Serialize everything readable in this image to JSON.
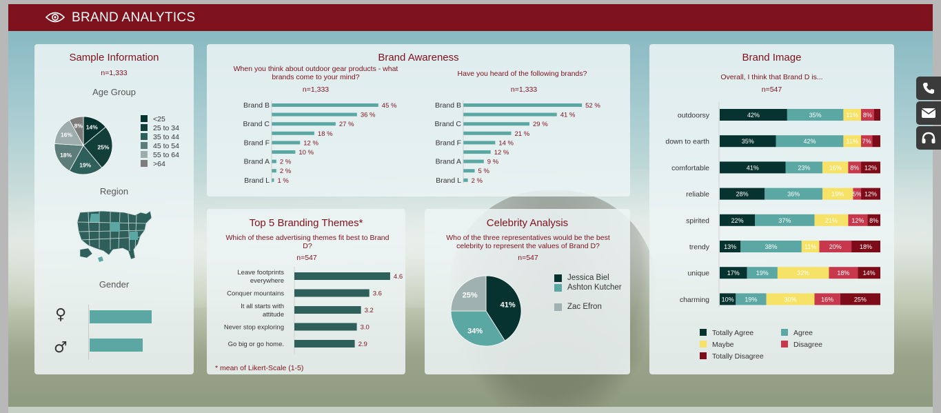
{
  "header": {
    "title": "BRAND ANALYTICS",
    "icon": "eye-icon"
  },
  "colors": {
    "header": "#7d111c",
    "dark": "#06332f",
    "teal": "#5aa7a3",
    "mid": "#2f5f5a",
    "yellow": "#f5e266",
    "pink": "#c7384d",
    "maroon": "#7d0c18"
  },
  "sample": {
    "title": "Sample Information",
    "n": "n=1,333",
    "age_title": "Age Group",
    "region_title": "Region",
    "gender_title": "Gender",
    "age_legend": [
      "<25",
      "25 to 34",
      "35 to 44",
      "45 to 54",
      "55 to 64",
      ">64"
    ],
    "gender_icons": [
      "female-icon",
      "male-icon"
    ]
  },
  "awareness": {
    "title": "Brand Awareness",
    "q1": "When you think about outdoor gear products  - what brands come to your mind?",
    "q2": "Have you heard of the following brands?",
    "n1": "n=1,333",
    "n2": "n=1,333"
  },
  "themes": {
    "title": "Top 5 Branding Themes*",
    "question": "Which of these advertising themes fit best to Brand D?",
    "n": "n=547",
    "footnote": "* mean of Likert-Scale (1-5)"
  },
  "celebrity": {
    "title": "Celebrity Analysis",
    "question": "Who of the three representatives would be the best celebrity to represent the values of Brand D?",
    "n": "n=547",
    "legend": [
      "Jessica Biel",
      "Ashton Kutcher",
      "Zac Efron"
    ]
  },
  "image": {
    "title": "Brand Image",
    "question": "Overall, I think that Brand D is...",
    "n": "n=547",
    "legend": [
      "Totally Agree",
      "Agree",
      "Maybe",
      "Disagree",
      "Totally Disagree"
    ]
  },
  "side_buttons": [
    "phone-icon",
    "mail-icon",
    "headset-icon"
  ],
  "chart_data": [
    {
      "type": "pie",
      "name": "age-group",
      "labels": [
        "<25",
        "25 to 34",
        "35 to 44",
        "45 to 54",
        "55 to 64",
        ">64"
      ],
      "values": [
        14,
        25,
        19,
        18,
        16,
        8
      ],
      "value_labels": [
        "14%",
        "25%",
        "19%",
        "18%",
        "16%",
        "8%"
      ],
      "colors": [
        "#06332f",
        "#123f3a",
        "#2f5f5a",
        "#5c7d79",
        "#9cadab",
        "#7c7c7c"
      ]
    },
    {
      "type": "bar",
      "name": "gender",
      "categories": [
        "female",
        "male"
      ],
      "values": [
        54,
        46
      ],
      "color": "#5aa7a3"
    },
    {
      "type": "bar",
      "name": "awareness-unaided",
      "categories": [
        "Brand B",
        "",
        "Brand C",
        "",
        "Brand F",
        "",
        "Brand A",
        "",
        "Brand L"
      ],
      "values": [
        45,
        36,
        27,
        18,
        12,
        10,
        2,
        2,
        1
      ],
      "value_labels": [
        "45 %",
        "36 %",
        "27 %",
        "18 %",
        "12 %",
        "10 %",
        "2 %",
        "2 %",
        "1 %"
      ],
      "xlim": [
        0,
        50
      ]
    },
    {
      "type": "bar",
      "name": "awareness-aided",
      "categories": [
        "Brand B",
        "",
        "Brand C",
        "",
        "Brand F",
        "",
        "Brand A",
        "",
        "Brand L"
      ],
      "values": [
        52,
        41,
        29,
        21,
        14,
        12,
        9,
        5,
        2
      ],
      "value_labels": [
        "52 %",
        "41 %",
        "29 %",
        "21 %",
        "14 %",
        "12 %",
        "9 %",
        "5 %",
        "2 %"
      ],
      "xlim": [
        0,
        58
      ]
    },
    {
      "type": "bar",
      "name": "themes",
      "categories": [
        "Leave footprints everywhere",
        "Conquer mountains",
        "It all starts with attitude",
        "Never stop exploring",
        "Go big or go home."
      ],
      "values": [
        4.6,
        3.6,
        3.2,
        3.0,
        2.9
      ],
      "value_labels": [
        "4.6",
        "3.6",
        "3.2",
        "3.0",
        "2.9"
      ],
      "xlim": [
        0,
        5
      ]
    },
    {
      "type": "pie",
      "name": "celebrity",
      "labels": [
        "Jessica Biel",
        "Ashton Kutcher",
        "Zac Efron"
      ],
      "values": [
        41,
        34,
        25
      ],
      "value_labels": [
        "41%",
        "34%",
        "25%"
      ],
      "colors": [
        "#06332f",
        "#5aa7a3",
        "#9fb2b0"
      ]
    },
    {
      "type": "bar",
      "name": "brand-image",
      "categories": [
        "outdoorsy",
        "down to earth",
        "comfortable",
        "reliable",
        "spirited",
        "trendy",
        "unique",
        "charming"
      ],
      "series": [
        {
          "name": "Totally Agree",
          "values": [
            42,
            35,
            41,
            28,
            22,
            13,
            17,
            10
          ],
          "labels": [
            "42%",
            "35%",
            "41%",
            "28%",
            "22%",
            "13%",
            "17%",
            "10%"
          ]
        },
        {
          "name": "Agree",
          "values": [
            35,
            42,
            23,
            36,
            37,
            38,
            19,
            19
          ],
          "labels": [
            "35%",
            "42%",
            "23%",
            "36%",
            "37%",
            "38%",
            "19%",
            "19%"
          ]
        },
        {
          "name": "Maybe",
          "values": [
            11,
            11,
            16,
            19,
            21,
            11,
            32,
            30
          ],
          "labels": [
            "11%",
            "11%",
            "16%",
            "19%",
            "21%",
            "11%",
            "32%",
            "30%"
          ]
        },
        {
          "name": "Disagree",
          "values": [
            8,
            7,
            8,
            5,
            12,
            20,
            18,
            16
          ],
          "labels": [
            "8%",
            "7%",
            "8%",
            "5%",
            "12%",
            "20%",
            "18%",
            "16%"
          ]
        },
        {
          "name": "Totally Disagree",
          "values": [
            4,
            5,
            12,
            12,
            8,
            18,
            14,
            25
          ],
          "labels": [
            "",
            "",
            "12%",
            "12%",
            "8%",
            "18%",
            "14%",
            "25%"
          ]
        }
      ],
      "stacked": true,
      "xlim": [
        0,
        100
      ]
    }
  ]
}
